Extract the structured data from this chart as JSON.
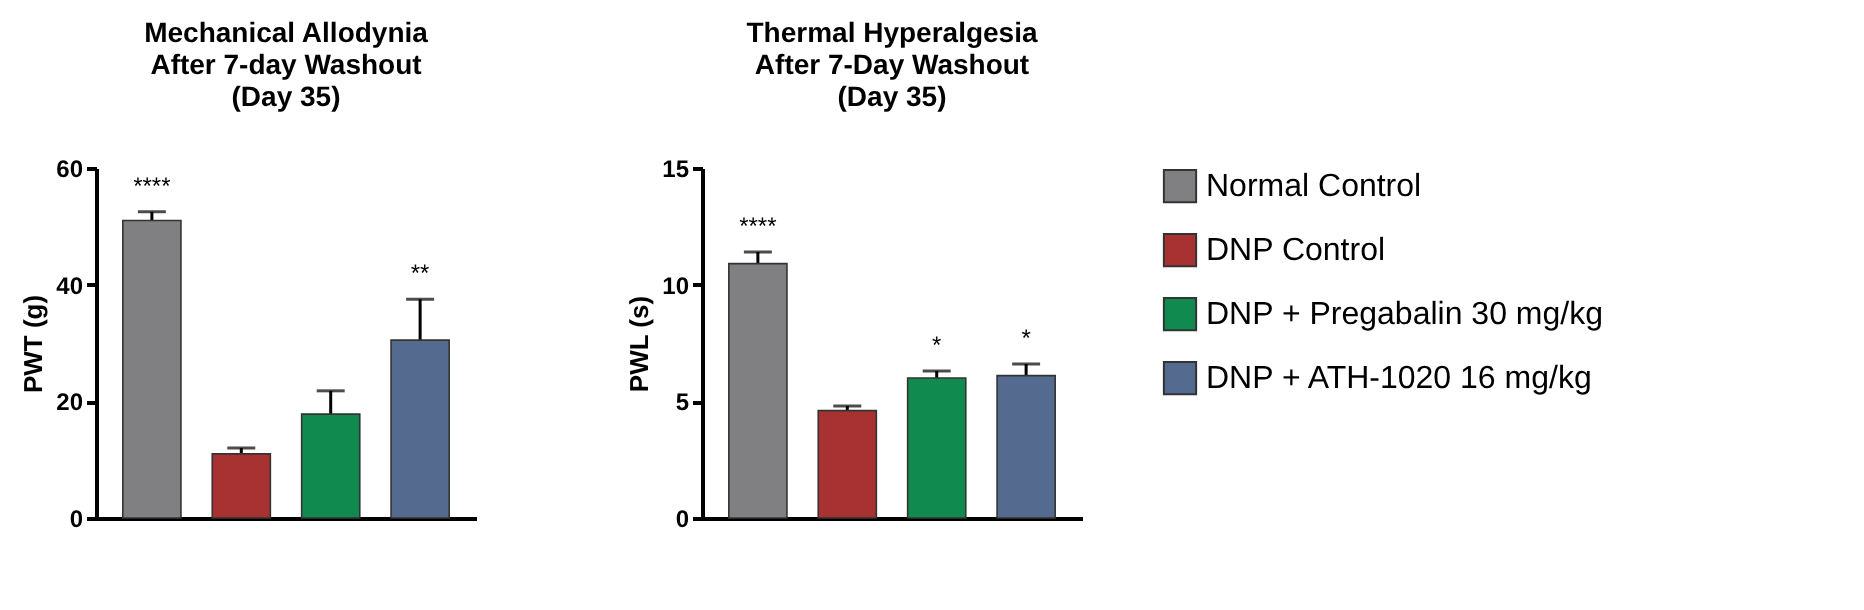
{
  "chart_data": [
    {
      "type": "bar",
      "title": "Mechanical Allodynia\nAfter 7-day Washout\n(Day 35)",
      "ylabel": "PWT (g)",
      "categories": [
        null
      ],
      "ylim": [
        0,
        60
      ],
      "yticks": [
        0,
        20,
        40,
        60
      ],
      "grid": false,
      "legend": false,
      "series": [
        {
          "color": "#808083",
          "values": [
            51
          ],
          "errors": [
            1.5
          ],
          "value_labels": [
            "****"
          ]
        },
        {
          "color": "#a83232",
          "values": [
            11
          ],
          "errors": [
            1
          ],
          "value_labels": [
            null
          ]
        },
        {
          "color": "#118a50",
          "values": [
            17.8
          ],
          "errors": [
            4
          ],
          "value_labels": [
            null
          ]
        },
        {
          "color": "#556a8f",
          "values": [
            30.5
          ],
          "errors": [
            7
          ],
          "value_labels": [
            "**"
          ]
        }
      ]
    },
    {
      "type": "bar",
      "title": "Thermal Hyperalgesia\nAfter 7-Day Washout\n(Day 35)",
      "ylabel": "PWL (s)",
      "categories": [
        null
      ],
      "ylim": [
        0,
        15
      ],
      "yticks": [
        0,
        5,
        10,
        15
      ],
      "grid": false,
      "legend": "right",
      "series": [
        {
          "name": "Normal Control",
          "color": "#808083",
          "values": [
            10.9
          ],
          "errors": [
            0.5
          ],
          "value_labels": [
            "****"
          ]
        },
        {
          "name": "DNP Control",
          "color": "#a83232",
          "values": [
            4.6
          ],
          "errors": [
            0.2
          ],
          "value_labels": [
            null
          ]
        },
        {
          "name": "DNP + Pregabalin 30 mg/kg",
          "color": "#118a50",
          "values": [
            6.0
          ],
          "errors": [
            0.3
          ],
          "value_labels": [
            "*"
          ]
        },
        {
          "name": "DNP + ATH-1020 16 mg/kg",
          "color": "#556a8f",
          "values": [
            6.1
          ],
          "errors": [
            0.5
          ],
          "value_labels": [
            "*"
          ]
        }
      ]
    }
  ]
}
